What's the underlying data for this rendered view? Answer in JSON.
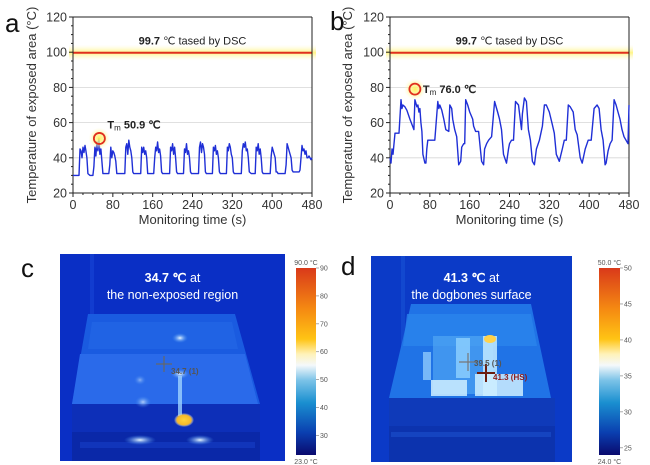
{
  "panels": {
    "a": {
      "letter": "a"
    },
    "b": {
      "letter": "b"
    },
    "c": {
      "letter": "c",
      "title_value": "34.7 ℃",
      "title_suffix": " at",
      "title_line2": "the non-exposed region",
      "markers": [
        {
          "label": "34.7 (1)",
          "color": "#555555"
        }
      ],
      "colorbar": {
        "max_label": "90.0 °C",
        "min_label": "23.0 °C",
        "min": 23,
        "max": 90,
        "ticks": [
          30,
          40,
          50,
          60,
          70,
          80,
          90
        ]
      }
    },
    "d": {
      "letter": "d",
      "title_value": "41.3 ℃",
      "title_suffix": " at",
      "title_line2": "the dogbones surface",
      "markers": [
        {
          "label": "39.5 (1)",
          "color": "#555555"
        },
        {
          "label": "41.3 (HS)",
          "color": "#8b1a1a"
        }
      ],
      "colorbar": {
        "max_label": "50.0 °C",
        "min_label": "24.0 °C",
        "min": 24,
        "max": 50,
        "ticks": [
          25,
          30,
          35,
          40,
          45,
          50
        ]
      }
    }
  },
  "chart_data": [
    {
      "type": "line",
      "panel": "a",
      "title": "",
      "xlabel": "Monitoring time (s)",
      "ylabel": "Temperature of exposed area (°C)",
      "xlim": [
        0,
        480
      ],
      "ylim": [
        20,
        120
      ],
      "xticks": [
        0,
        80,
        160,
        240,
        320,
        400,
        480
      ],
      "yticks": [
        20,
        40,
        60,
        80,
        100,
        120
      ],
      "grid": true,
      "reference_line": {
        "y": 99.7,
        "label_value": "99.7",
        "label_text": " ℃ tased by DSC",
        "color": "#e0301e"
      },
      "annotation": {
        "label_prefix": "T",
        "label_sub": "m",
        "label_value": " 50.9 ℃",
        "x": 53,
        "y": 51
      },
      "series": [
        {
          "name": "exposed area temperature",
          "color": "#1f2fd6",
          "x": [
            0,
            12,
            14,
            16,
            18,
            20,
            22,
            24,
            26,
            28,
            30,
            34,
            40,
            42,
            44,
            46,
            48,
            50,
            52,
            54,
            56,
            58,
            60,
            62,
            66,
            72,
            74,
            76,
            78,
            80,
            82,
            84,
            86,
            88,
            90,
            92,
            96,
            104,
            106,
            108,
            110,
            112,
            114,
            116,
            118,
            120,
            122,
            126,
            134,
            136,
            138,
            140,
            142,
            144,
            146,
            148,
            150,
            152,
            156,
            162,
            164,
            166,
            168,
            170,
            172,
            174,
            176,
            178,
            180,
            184,
            192,
            194,
            196,
            198,
            200,
            202,
            204,
            206,
            208,
            210,
            214,
            220,
            222,
            224,
            226,
            228,
            230,
            232,
            234,
            236,
            238,
            242,
            250,
            252,
            254,
            256,
            258,
            260,
            262,
            264,
            266,
            268,
            272,
            278,
            280,
            282,
            284,
            286,
            288,
            290,
            292,
            294,
            296,
            300,
            306,
            308,
            310,
            312,
            314,
            316,
            318,
            320,
            322,
            324,
            328,
            336,
            338,
            340,
            342,
            344,
            346,
            348,
            350,
            352,
            354,
            358,
            364,
            366,
            368,
            370,
            372,
            374,
            376,
            378,
            380,
            382,
            386,
            394,
            396,
            398,
            400,
            402,
            404,
            406,
            408,
            410,
            412,
            416,
            424,
            426,
            428,
            430,
            432,
            434,
            436,
            438,
            440,
            442,
            446,
            454,
            456,
            458,
            460,
            462,
            464,
            466,
            468,
            470,
            472,
            474,
            478,
            480
          ],
          "y": [
            30,
            30,
            45,
            44,
            40,
            46,
            43,
            47,
            44,
            40,
            31,
            30,
            30,
            35,
            46,
            41,
            49,
            44,
            51,
            42,
            45,
            38,
            31,
            31,
            31,
            31,
            36,
            46,
            40,
            44,
            43,
            41,
            38,
            31,
            31,
            31,
            31,
            31,
            46,
            48,
            42,
            50,
            46,
            44,
            40,
            32,
            31,
            31,
            31,
            31,
            46,
            43,
            46,
            42,
            44,
            40,
            31,
            31,
            31,
            31,
            40,
            46,
            44,
            49,
            43,
            45,
            41,
            32,
            31,
            31,
            31,
            31,
            46,
            44,
            48,
            42,
            46,
            40,
            32,
            31,
            31,
            31,
            31,
            45,
            43,
            48,
            42,
            44,
            40,
            32,
            31,
            31,
            31,
            31,
            46,
            49,
            43,
            48,
            46,
            42,
            32,
            31,
            31,
            31,
            31,
            46,
            44,
            47,
            42,
            44,
            40,
            32,
            31,
            31,
            31,
            31,
            46,
            44,
            48,
            46,
            42,
            40,
            32,
            31,
            31,
            31,
            31,
            44,
            48,
            46,
            49,
            44,
            45,
            40,
            32,
            31,
            31,
            31,
            46,
            44,
            48,
            42,
            45,
            40,
            32,
            31,
            31,
            31,
            31,
            41,
            46,
            44,
            42,
            40,
            32,
            32,
            31,
            31,
            31,
            31,
            36,
            48,
            46,
            44,
            42,
            40,
            33,
            32,
            32,
            32,
            33,
            40,
            47,
            44,
            45,
            42,
            44,
            40,
            40,
            41,
            39,
            40
          ]
        }
      ]
    },
    {
      "type": "line",
      "panel": "b",
      "title": "",
      "xlabel": "Monitoring time (s)",
      "ylabel": "Temperature of exposed area (°C)",
      "xlim": [
        0,
        480
      ],
      "ylim": [
        20,
        120
      ],
      "xticks": [
        0,
        80,
        160,
        240,
        320,
        400,
        480
      ],
      "yticks": [
        20,
        40,
        60,
        80,
        100,
        120
      ],
      "grid": true,
      "reference_line": {
        "y": 99.7,
        "label_value": "99.7",
        "label_text": " ℃ tased by DSC",
        "color": "#e0301e"
      },
      "annotation": {
        "label_prefix": "T",
        "label_sub": "m",
        "label_value": " 76.0 ℃",
        "x": 50,
        "y": 79
      },
      "series": [
        {
          "name": "exposed area temperature",
          "color": "#1f2fd6",
          "x": [
            0,
            2,
            4,
            6,
            10,
            16,
            18,
            22,
            24,
            26,
            30,
            34,
            40,
            48,
            50,
            52,
            54,
            56,
            58,
            60,
            62,
            64,
            66,
            70,
            72,
            74,
            76,
            80,
            84,
            90,
            96,
            98,
            100,
            104,
            108,
            112,
            118,
            120,
            124,
            126,
            130,
            134,
            138,
            142,
            144,
            148,
            150,
            152,
            156,
            160,
            166,
            168,
            172,
            178,
            184,
            188,
            190,
            194,
            198,
            204,
            210,
            212,
            216,
            220,
            224,
            228,
            234,
            238,
            240,
            244,
            248,
            252,
            258,
            264,
            266,
            270,
            274,
            278,
            282,
            286,
            290,
            294,
            300,
            306,
            310,
            314,
            320,
            326,
            330,
            334,
            340,
            346,
            350,
            354,
            358,
            362,
            368,
            372,
            376,
            382,
            386,
            392,
            398,
            404,
            410,
            416,
            420,
            424,
            428,
            432,
            434,
            438,
            442,
            446,
            450,
            454,
            458,
            462,
            466,
            470,
            474,
            478,
            480
          ],
          "y": [
            40,
            37,
            45,
            42,
            54,
            54,
            54,
            73,
            68,
            70,
            69,
            67,
            62,
            56,
            73,
            71,
            69,
            70,
            66,
            68,
            60,
            55,
            42,
            37,
            37,
            45,
            50,
            50,
            50,
            50,
            72,
            68,
            70,
            67,
            62,
            56,
            55,
            70,
            68,
            62,
            56,
            52,
            36,
            38,
            46,
            48,
            48,
            73,
            70,
            66,
            62,
            58,
            55,
            55,
            38,
            36,
            45,
            48,
            50,
            52,
            72,
            70,
            66,
            62,
            56,
            42,
            37,
            45,
            48,
            50,
            50,
            72,
            70,
            56,
            65,
            74,
            72,
            56,
            50,
            38,
            36,
            45,
            50,
            58,
            70,
            70,
            66,
            59,
            54,
            42,
            38,
            45,
            50,
            50,
            70,
            69,
            66,
            56,
            53,
            40,
            37,
            45,
            50,
            50,
            68,
            70,
            68,
            56,
            50,
            36,
            37,
            44,
            48,
            50,
            73,
            70,
            66,
            62,
            56,
            52,
            50,
            48,
            70
          ]
        }
      ]
    }
  ]
}
